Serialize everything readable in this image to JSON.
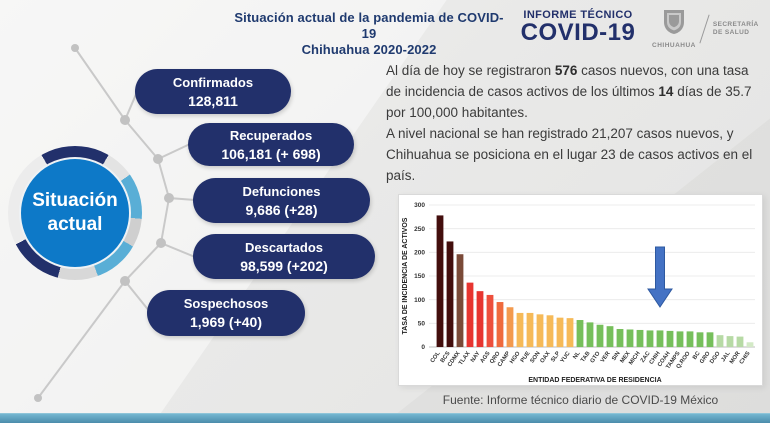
{
  "header": {
    "title_line1": "Situación actual de la pandemia de COVID-19",
    "title_line2": "Chihuahua 2020-2022",
    "logo_top": "INFORME TÉCNICO",
    "logo_main": "COVID-19",
    "gov_name": "CHIHUAHUA",
    "ministry_line1": "SECRETARÍA",
    "ministry_line2": "DE SALUD"
  },
  "badge": {
    "line1": "Situación",
    "line2": "actual"
  },
  "stats": [
    {
      "label": "Confirmados",
      "value": "128,811"
    },
    {
      "label": "Recuperados",
      "value": "106,181 (+ 698)"
    },
    {
      "label": "Defunciones",
      "value": "9,686 (+28)"
    },
    {
      "label": "Descartados",
      "value": "98,599 (+202)"
    },
    {
      "label": "Sospechosos",
      "value": "1,969 (+40)"
    }
  ],
  "summary": {
    "s1": "Al día de hoy se registraron ",
    "b1": "576",
    "s2": " casos nuevos, con una tasa de incidencia de casos activos de los últimos ",
    "b2": "14",
    "s3": " días de 35.7 por 100,000 habitantes.",
    "s4": "A nivel nacional se han registrado 21,207 casos nuevos, y Chihuahua se posiciona en el lugar 23 de casos activos en el país."
  },
  "chart_data": {
    "type": "bar",
    "title": "",
    "xlabel": "ENTIDAD FEDERATIVA DE RESIDENCIA",
    "ylabel": "TASA DE INCIDENCIA DE ACTIVOS",
    "ylim": [
      0,
      300
    ],
    "yticks": [
      0,
      50,
      100,
      150,
      200,
      250,
      300
    ],
    "grid": true,
    "legend": false,
    "categories": [
      "COL",
      "BCS",
      "CDMX",
      "TLAX",
      "NAY",
      "AGS",
      "QRO",
      "CAMP",
      "HGO",
      "PUE",
      "SON",
      "OAX",
      "SLP",
      "YUC",
      "NL",
      "TAB",
      "GTO",
      "VER",
      "SIN",
      "MEX",
      "MICH",
      "ZAC",
      "CHIH",
      "COAH",
      "TAMPS",
      "Q.ROO",
      "BC",
      "GRO",
      "DGO",
      "JAL",
      "MOR",
      "CHIS"
    ],
    "values": [
      278,
      223,
      196,
      136,
      118,
      110,
      95,
      84,
      72,
      72,
      69,
      67,
      62,
      61,
      57,
      52,
      47,
      44,
      38,
      37,
      36,
      35,
      35,
      34,
      33,
      33,
      31,
      31,
      25,
      23,
      22,
      10
    ],
    "bar_colors": [
      "#430e0d",
      "#430e0d",
      "#7a4a38",
      "#e73530",
      "#e73530",
      "#ed4f3c",
      "#ef6a3d",
      "#f39a4e",
      "#f6ba58",
      "#f6ba58",
      "#f6ba58",
      "#f6ba58",
      "#f6ba58",
      "#f6ba58",
      "#76bf5b",
      "#76bf5b",
      "#76bf5b",
      "#76bf5b",
      "#76bf5b",
      "#76bf5b",
      "#76bf5b",
      "#76bf5b",
      "#76bf5b",
      "#76bf5b",
      "#76bf5b",
      "#76bf5b",
      "#76bf5b",
      "#76bf5b",
      "#b7daa5",
      "#b7daa5",
      "#b7daa5",
      "#d3e9c6"
    ],
    "annotation": {
      "type": "down-arrow",
      "target": "CHIH",
      "target_index": 22,
      "color": "#4472c4",
      "border_color": "#2e59a0"
    }
  },
  "footer": {
    "source": "Fuente: Informe técnico diario de COVID-19 México"
  },
  "colors": {
    "navy": "#22306b",
    "header_text": "#1f3a6f",
    "badge_blue": "#0d79c8",
    "ring_light_blue": "#59aed6",
    "bottom_bar": "#4b8cab",
    "arrow_blue": "#4472c4"
  }
}
